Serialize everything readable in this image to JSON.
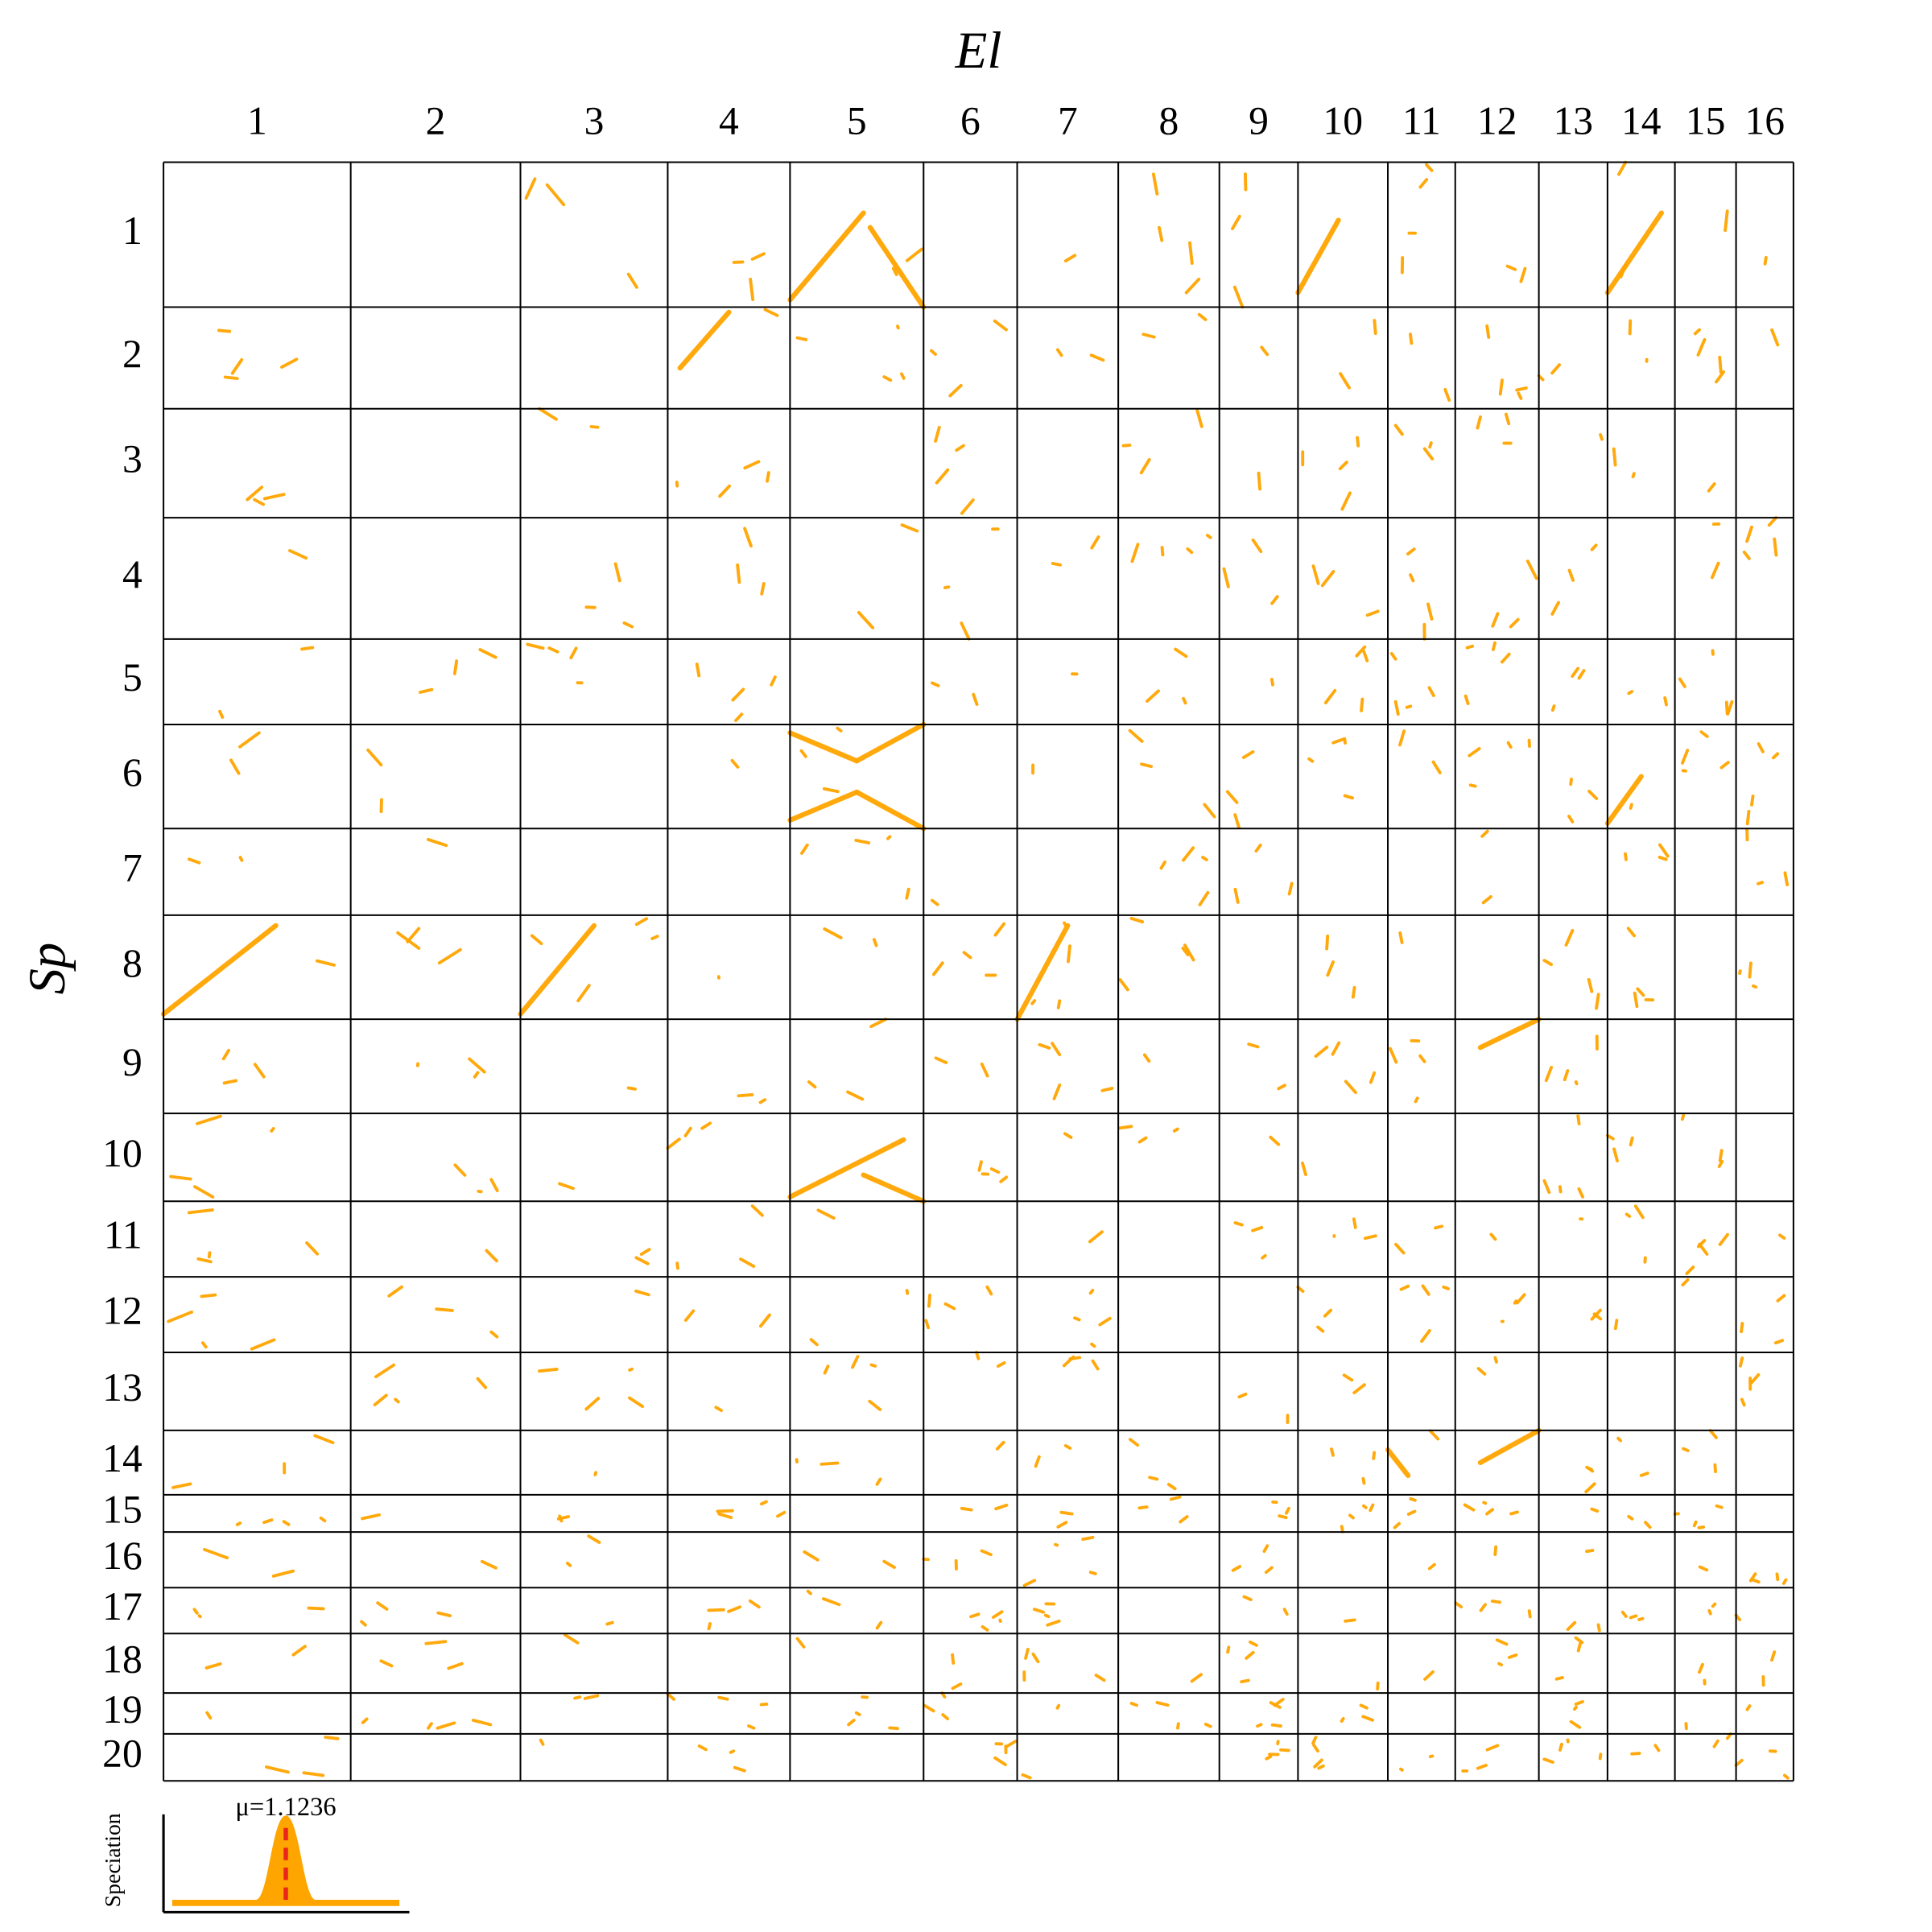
{
  "title": "El",
  "y_title": "Sp",
  "columns": [
    "1",
    "2",
    "3",
    "4",
    "5",
    "6",
    "7",
    "8",
    "9",
    "10",
    "11",
    "12",
    "13",
    "14",
    "15",
    "16"
  ],
  "rows": [
    "1",
    "2",
    "3",
    "4",
    "5",
    "6",
    "7",
    "8",
    "9",
    "10",
    "11",
    "12",
    "13",
    "14",
    "15",
    "16",
    "17",
    "18",
    "19",
    "20"
  ],
  "inset": {
    "ylabel": "Speciation",
    "mean_label": "μ=1.1236"
  }
}
